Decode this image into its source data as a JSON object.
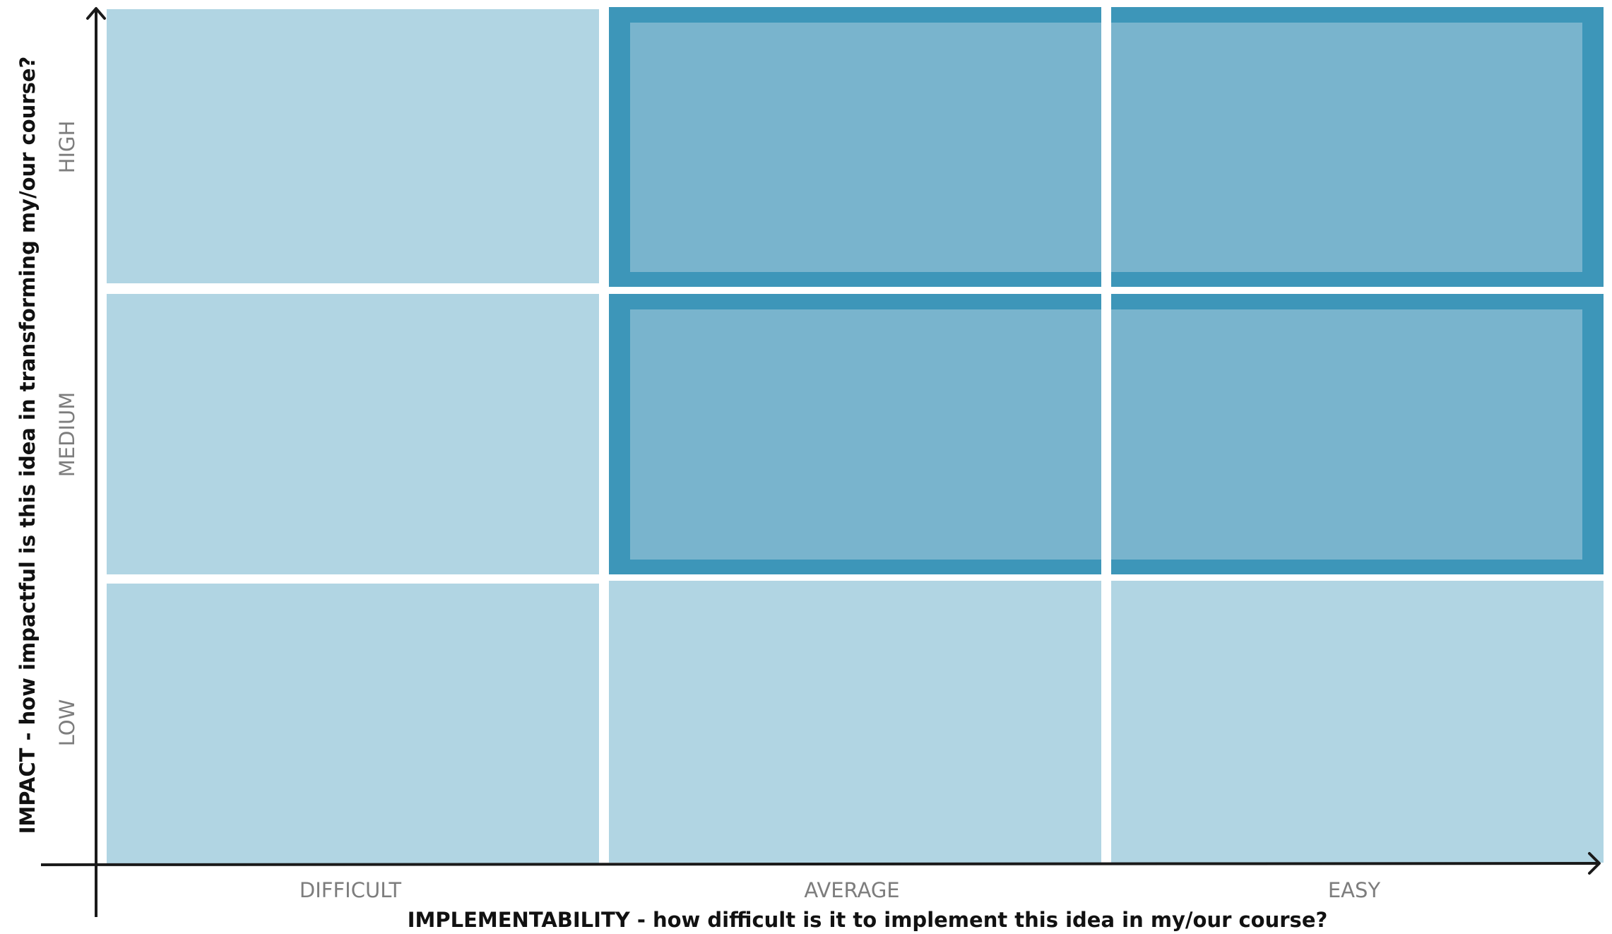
{
  "matrix": {
    "x_axis": {
      "title": "IMPLEMENTABILITY - how difficult is it to implement this idea in my/our course?",
      "levels": [
        "DIFFICULT",
        "AVERAGE",
        "EASY"
      ]
    },
    "y_axis": {
      "title": "IMPACT - how impactful is this idea in transforming my/our course?",
      "levels": [
        "LOW",
        "MEDIUM",
        "HIGH"
      ]
    },
    "highlighted_cells": [
      {
        "x": "AVERAGE",
        "y": "HIGH"
      },
      {
        "x": "EASY",
        "y": "HIGH"
      },
      {
        "x": "AVERAGE",
        "y": "MEDIUM"
      },
      {
        "x": "EASY",
        "y": "MEDIUM"
      }
    ],
    "colors": {
      "cell": "#b1d5e3",
      "highlight_fill": "#79b4cd",
      "highlight_border": "#3d96b9",
      "axis": "#1a1a1a",
      "tick_label": "#7d7d7d"
    }
  }
}
